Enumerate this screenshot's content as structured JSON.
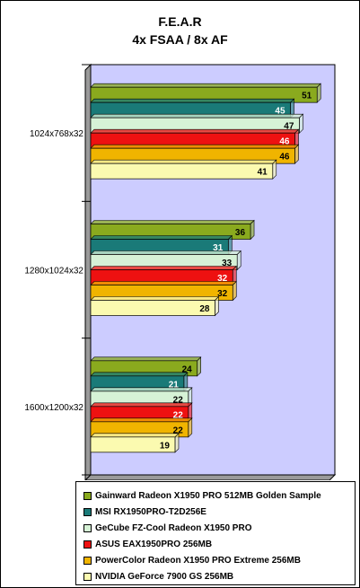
{
  "chart_data": {
    "type": "bar",
    "orientation": "horizontal",
    "title": "F.E.A.R",
    "subtitle": "4x FSAA / 8x AF",
    "categories": [
      "1024x768x32",
      "1280x1024x32",
      "1600x1200x32"
    ],
    "series": [
      {
        "name": "Gainward Radeon X1950 PRO 512MB Golden Sample",
        "color": "#8aaa1e",
        "label_color": "#000000",
        "values": [
          51,
          36,
          24
        ]
      },
      {
        "name": "MSI RX1950PRO-T2D256E",
        "color": "#1a7a78",
        "label_color": "#ffffff",
        "values": [
          45,
          31,
          21
        ]
      },
      {
        "name": "GeCube FZ-Cool Radeon X1950 PRO",
        "color": "#d6f2d6",
        "label_color": "#000000",
        "values": [
          47,
          33,
          22
        ]
      },
      {
        "name": "ASUS EAX1950PRO 256MB",
        "color": "#ee1111",
        "label_color": "#ffffff",
        "values": [
          46,
          32,
          22
        ]
      },
      {
        "name": "PowerColor Radeon X1950 PRO Extreme 256MB",
        "color": "#f0b400",
        "label_color": "#000000",
        "values": [
          46,
          32,
          22
        ]
      },
      {
        "name": "NVIDIA GeForce 7900 GS 256MB",
        "color": "#fbfab0",
        "label_color": "#000000",
        "values": [
          41,
          28,
          19
        ]
      }
    ],
    "xlim": [
      0,
      55
    ],
    "grid": false,
    "legend": "bottom",
    "plot_background": "#ccccff"
  }
}
